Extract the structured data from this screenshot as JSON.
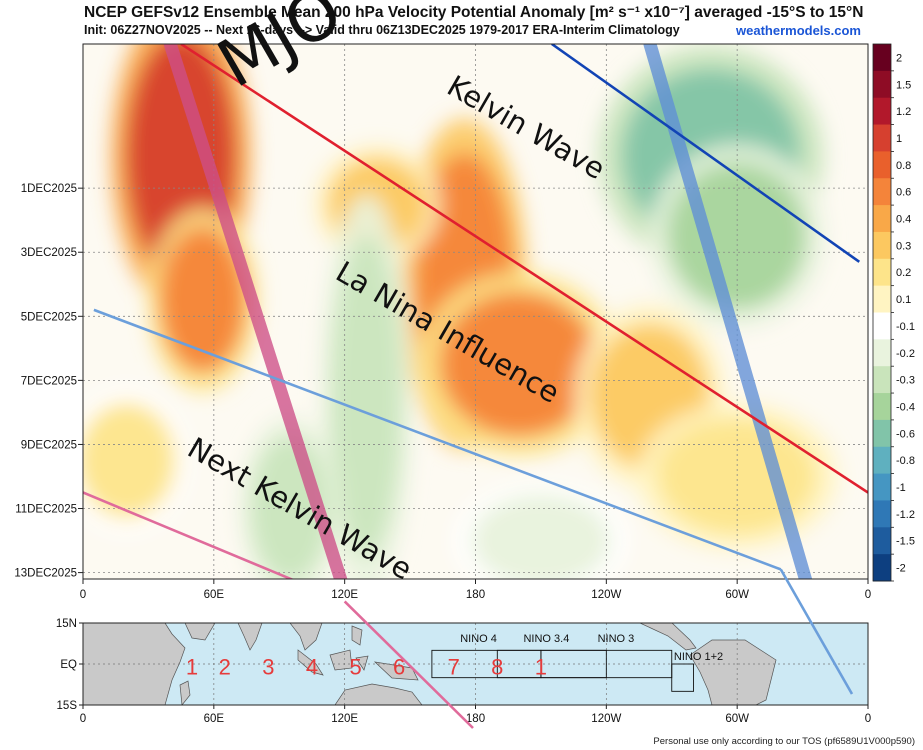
{
  "header": {
    "title": "NCEP GEFSv12 Ensemble Mean 200 hPa Velocity Potential Anomaly [m² s⁻¹ x10⁻⁷] averaged -15°S to 15°N",
    "subtitle": "Init: 06Z27NOV2025 -- Next 16-days --> Valid thru 06Z13DEC2025 1979-2017 ERA-Interim Climatology",
    "brand": "weathermodels.com"
  },
  "footer": "Personal use only according to our TOS (pf6589U1V000p590)",
  "chart_data": {
    "type": "heatmap",
    "xlabel": "",
    "ylabel": "",
    "x_ticks": [
      "0",
      "60E",
      "120E",
      "180",
      "120W",
      "60W",
      "0"
    ],
    "x_tick_lon": [
      0,
      60,
      120,
      180,
      240,
      300,
      360
    ],
    "y_ticks": [
      "1DEC2025",
      "3DEC2025",
      "5DEC2025",
      "7DEC2025",
      "9DEC2025",
      "11DEC2025",
      "13DEC2025"
    ],
    "y_tick_day": [
      4,
      6,
      8,
      10,
      12,
      14,
      16
    ],
    "colorbar": {
      "labels": [
        "2",
        "1.5",
        "1.2",
        "1",
        "0.8",
        "0.6",
        "0.4",
        "0.3",
        "0.2",
        "0.1",
        "-0.1",
        "-0.2",
        "-0.3",
        "-0.4",
        "-0.6",
        "-0.8",
        "-1",
        "-1.2",
        "-1.5",
        "-2"
      ],
      "colors": [
        "#67001f",
        "#8e0c25",
        "#b2182b",
        "#d6402f",
        "#e9602c",
        "#f4843a",
        "#f9a848",
        "#fcc860",
        "#fde48a",
        "#fff4c2",
        "#ffffff",
        "#e9f3de",
        "#c9e4bb",
        "#a6d49b",
        "#81c4a9",
        "#5fb0bf",
        "#4596c2",
        "#2f78b6",
        "#1e5c9e",
        "#0d3f80"
      ]
    },
    "field_blobs": [
      {
        "lon": 45,
        "day": 3.0,
        "rlon": 28,
        "rday": 4.2,
        "value": 1.1
      },
      {
        "lon": 55,
        "day": 7.5,
        "rlon": 22,
        "rday": 2.5,
        "value": 0.6
      },
      {
        "lon": 175,
        "day": 7.0,
        "rlon": 25,
        "rday": 4.5,
        "value": 0.7
      },
      {
        "lon": 200,
        "day": 9.5,
        "rlon": 40,
        "rday": 2.5,
        "value": 0.6
      },
      {
        "lon": 260,
        "day": 10.5,
        "rlon": 30,
        "rday": 2.5,
        "value": 0.3
      },
      {
        "lon": 135,
        "day": 4.5,
        "rlon": 25,
        "rday": 1.6,
        "value": 0.3
      },
      {
        "lon": 300,
        "day": 13.0,
        "rlon": 40,
        "rday": 2.0,
        "value": 0.25
      },
      {
        "lon": 20,
        "day": 12.5,
        "rlon": 25,
        "rday": 2.0,
        "value": 0.2
      },
      {
        "lon": 288,
        "day": 3.0,
        "rlon": 45,
        "rday": 3.0,
        "value": -0.75
      },
      {
        "lon": 300,
        "day": 5.5,
        "rlon": 35,
        "rday": 2.5,
        "value": -0.45
      },
      {
        "lon": 130,
        "day": 10.5,
        "rlon": 18,
        "rday": 5.5,
        "value": -0.35
      },
      {
        "lon": 95,
        "day": 14.0,
        "rlon": 20,
        "rday": 2.5,
        "value": -0.3
      },
      {
        "lon": 210,
        "day": 15.0,
        "rlon": 35,
        "rday": 1.6,
        "value": -0.2
      }
    ],
    "lines": [
      {
        "name": "red-line",
        "color": "#e0202f",
        "from": [
          45,
          -0.5
        ],
        "to": [
          360,
          13.5
        ]
      },
      {
        "name": "navy-line",
        "color": "#1244b5",
        "from": [
          215,
          -0.5
        ],
        "to": [
          356,
          6.3
        ]
      },
      {
        "name": "light-blue-line",
        "color": "#6c9fdb",
        "from": [
          5,
          7.8
        ],
        "to": [
          320,
          15.9
        ]
      },
      {
        "name": "pink-line",
        "color": "#e06b9b",
        "from": [
          0,
          13.5
        ],
        "to": [
          120,
          16.9
        ]
      }
    ],
    "bands": [
      {
        "name": "mjo-band",
        "color": "#cd4f88",
        "from": [
          40,
          -0.5
        ],
        "to": [
          120,
          16.6
        ]
      },
      {
        "name": "blue-band",
        "color": "#5f8fd6",
        "from": [
          260,
          -0.5
        ],
        "to": [
          333,
          16.6
        ]
      }
    ],
    "annotations": [
      {
        "text": "MJO",
        "lon": 70,
        "day": 0.9,
        "size": 66,
        "angle": -30,
        "color": "#777777"
      },
      {
        "text": "Kelvin Wave",
        "lon": 166,
        "day": 1.0,
        "size": 29,
        "angle": 30,
        "color": "#111111"
      },
      {
        "text": "La Nina Influence",
        "lon": 115,
        "day": 6.8,
        "size": 29,
        "angle": 30,
        "color": "#111111"
      },
      {
        "text": "Next Kelvin Wave",
        "lon": 47,
        "day": 12.3,
        "size": 29,
        "angle": 30,
        "color": "#111111"
      }
    ]
  },
  "map": {
    "y_ticks": [
      "15N",
      "EQ",
      "15S"
    ],
    "x_ticks": [
      "0",
      "60E",
      "120E",
      "180",
      "120W",
      "60W",
      "0"
    ],
    "regions": [
      "NINO 4",
      "NINO 3.4",
      "NINO 3",
      "NINO 1+2"
    ],
    "phases": [
      "1",
      "2",
      "3",
      "4",
      "5",
      "6",
      "7",
      "8",
      "1"
    ]
  }
}
